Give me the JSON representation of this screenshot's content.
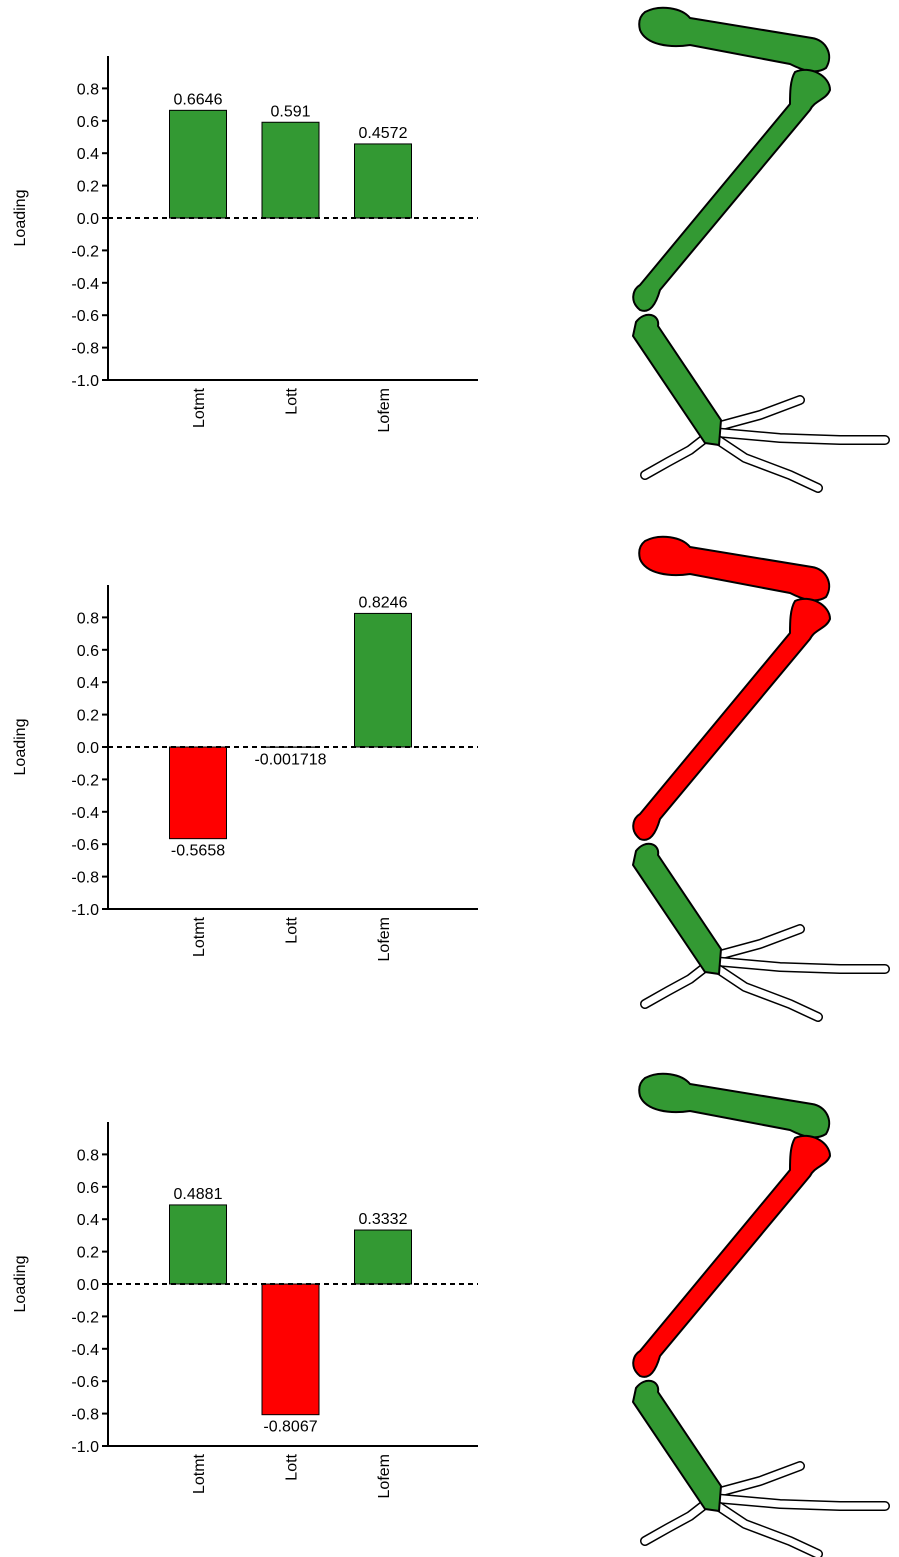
{
  "chart_data": [
    {
      "type": "bar",
      "y_label": "Loading",
      "categories": [
        "Lotmt",
        "Lott",
        "Lofem"
      ],
      "values": [
        0.6646,
        0.591,
        0.4572
      ],
      "colors": [
        "#339933",
        "#339933",
        "#339933"
      ],
      "ylim": [
        -1,
        1
      ],
      "yticks": [
        {
          "value": -1,
          "label": "-1.0"
        },
        -0.8,
        -0.6,
        -0.4,
        -0.2,
        {
          "value": 0,
          "label": "0.0"
        },
        0.2,
        0.4,
        0.6,
        0.8
      ]
    },
    {
      "type": "bar",
      "y_label": "Loading",
      "categories": [
        "Lotmt",
        "Lott",
        "Lofem"
      ],
      "values": [
        -0.5658,
        -0.001718,
        0.8246
      ],
      "colors": [
        "#ff0000",
        "#ff0000",
        "#339933"
      ],
      "ylim": [
        -1,
        1
      ],
      "yticks": [
        {
          "value": -1,
          "label": "-1.0"
        },
        -0.8,
        -0.6,
        -0.4,
        -0.2,
        {
          "value": 0,
          "label": "0.0"
        },
        0.2,
        0.4,
        0.6,
        0.8
      ]
    },
    {
      "type": "bar",
      "y_label": "Loading",
      "categories": [
        "Lotmt",
        "Lott",
        "Lofem"
      ],
      "values": [
        0.4881,
        -0.8067,
        0.3332
      ],
      "colors": [
        "#339933",
        "#ff0000",
        "#339933"
      ],
      "ylim": [
        -1,
        1
      ],
      "yticks": [
        {
          "value": -1,
          "label": "-1.0"
        },
        -0.8,
        -0.6,
        -0.4,
        -0.2,
        {
          "value": 0,
          "label": "0.0"
        },
        0.2,
        0.4,
        0.6,
        0.8
      ]
    }
  ]
}
